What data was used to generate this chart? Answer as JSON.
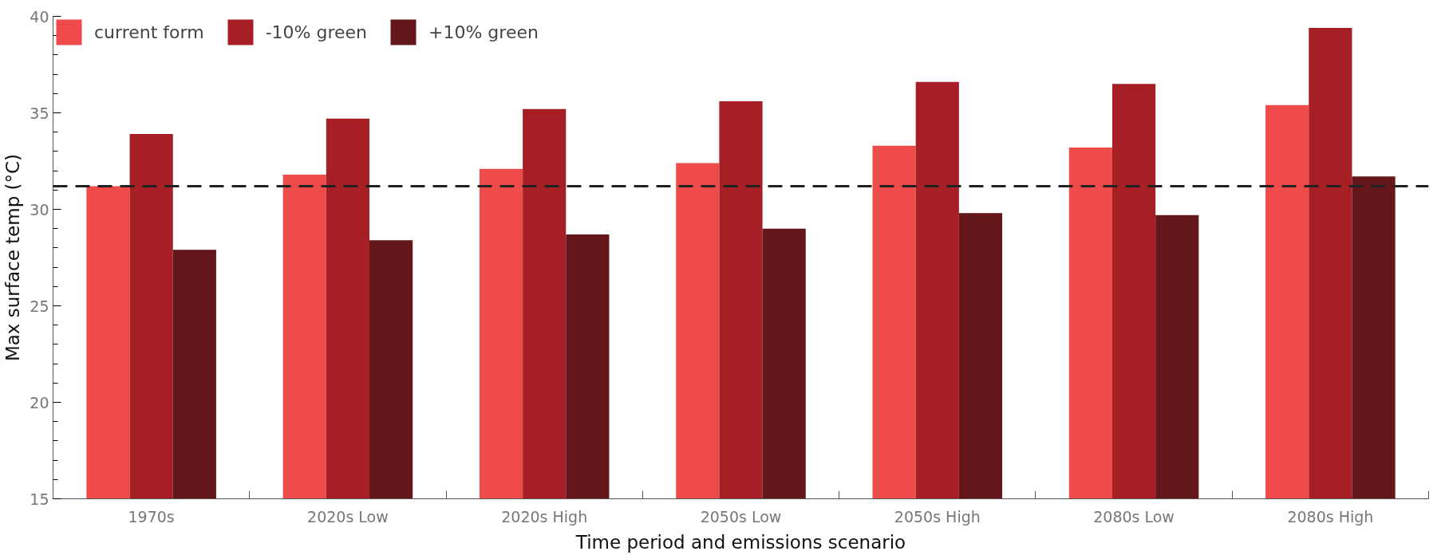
{
  "chart_data": {
    "type": "bar",
    "xlabel": "Time period and emissions scenario",
    "ylabel": "Max surface temp (°C)",
    "categories": [
      "1970s",
      "2020s Low",
      "2020s High",
      "2050s Low",
      "2050s High",
      "2080s Low",
      "2080s High"
    ],
    "series": [
      {
        "name": "current form",
        "color": "#ef4b4b",
        "values": [
          31.2,
          31.8,
          32.1,
          32.4,
          33.3,
          33.2,
          35.4
        ]
      },
      {
        "name": "-10% green",
        "color": "#a51f24",
        "values": [
          33.9,
          34.7,
          35.2,
          35.6,
          36.6,
          36.5,
          39.4
        ]
      },
      {
        "name": "+10% green",
        "color": "#65161a",
        "values": [
          27.9,
          28.4,
          28.7,
          29.0,
          29.8,
          29.7,
          31.7
        ]
      }
    ],
    "ylim": [
      15,
      40
    ],
    "yticks": [
      15,
      20,
      25,
      30,
      35,
      40
    ],
    "ref_lines": [
      {
        "axis": "y",
        "value": 31.2,
        "label": null,
        "color": "#222222",
        "line_style": "dashed"
      }
    ],
    "grid": false,
    "legend": "top left"
  }
}
